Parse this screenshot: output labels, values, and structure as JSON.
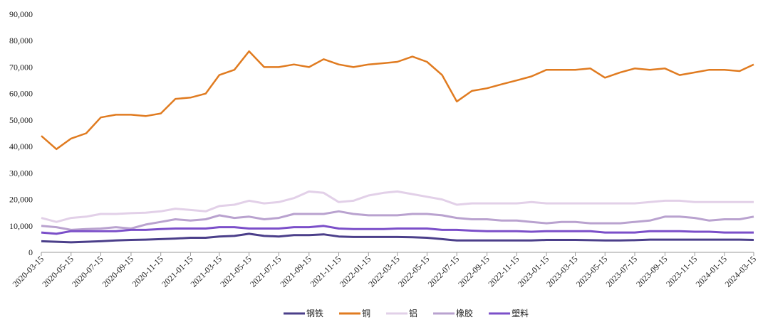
{
  "chart_data": {
    "type": "line",
    "x": [
      "2020-03-15",
      "2020-04-15",
      "2020-05-15",
      "2020-06-15",
      "2020-07-15",
      "2020-08-15",
      "2020-09-15",
      "2020-10-15",
      "2020-11-15",
      "2020-12-15",
      "2021-01-15",
      "2021-02-15",
      "2021-03-15",
      "2021-04-15",
      "2021-05-15",
      "2021-06-15",
      "2021-07-15",
      "2021-08-15",
      "2021-09-15",
      "2021-10-15",
      "2021-11-15",
      "2021-12-15",
      "2022-01-15",
      "2022-02-15",
      "2022-03-15",
      "2022-04-15",
      "2022-05-15",
      "2022-06-15",
      "2022-07-15",
      "2022-08-15",
      "2022-09-15",
      "2022-10-15",
      "2022-11-15",
      "2022-12-15",
      "2023-01-15",
      "2023-02-15",
      "2023-03-15",
      "2023-04-15",
      "2023-05-15",
      "2023-06-15",
      "2023-07-15",
      "2023-08-15",
      "2023-09-15",
      "2023-10-15",
      "2023-11-15",
      "2023-12-15",
      "2024-01-15",
      "2024-02-15",
      "2024-03-15"
    ],
    "series": [
      {
        "name": "钢铁",
        "color": "#4b3f8a",
        "values": [
          4200,
          4000,
          3800,
          4000,
          4200,
          4500,
          4700,
          4800,
          5000,
          5200,
          5500,
          5500,
          6000,
          6200,
          7000,
          6200,
          6000,
          6500,
          6500,
          6800,
          6000,
          5800,
          5800,
          5800,
          5800,
          5700,
          5500,
          5000,
          4500,
          4500,
          4500,
          4500,
          4500,
          4500,
          4700,
          4700,
          4700,
          4600,
          4500,
          4500,
          4600,
          4800,
          4800,
          4800,
          4800,
          4800,
          4800,
          4800,
          4700
        ]
      },
      {
        "name": "铜",
        "color": "#e07b20",
        "values": [
          44000,
          39000,
          43000,
          45000,
          51000,
          52000,
          52000,
          51500,
          52500,
          58000,
          58500,
          60000,
          67000,
          69000,
          76000,
          70000,
          70000,
          71000,
          70000,
          73000,
          71000,
          70000,
          71000,
          71500,
          72000,
          74000,
          72000,
          67000,
          57000,
          61000,
          62000,
          63500,
          65000,
          66500,
          69000,
          69000,
          69000,
          69500,
          66000,
          68000,
          69500,
          69000,
          69500,
          67000,
          68000,
          69000,
          69000,
          68500,
          71000
        ]
      },
      {
        "name": "铝",
        "color": "#e2d0e8",
        "values": [
          13000,
          11500,
          13000,
          13500,
          14500,
          14500,
          14800,
          15000,
          15500,
          16500,
          16000,
          15500,
          17500,
          18000,
          19500,
          18500,
          19000,
          20500,
          23000,
          22500,
          19000,
          19500,
          21500,
          22500,
          23000,
          22000,
          21000,
          20000,
          18000,
          18500,
          18500,
          18500,
          18500,
          19000,
          18500,
          18500,
          18500,
          18500,
          18500,
          18500,
          18500,
          19000,
          19500,
          19500,
          19000,
          19000,
          19000,
          19000,
          19000
        ]
      },
      {
        "name": "橡胶",
        "color": "#b9a2cf",
        "values": [
          10000,
          9500,
          8500,
          8800,
          9000,
          9500,
          9000,
          10500,
          11500,
          12500,
          12000,
          12500,
          14000,
          13000,
          13500,
          12500,
          13000,
          14500,
          14500,
          14500,
          15500,
          14500,
          14000,
          14000,
          14000,
          14500,
          14500,
          14000,
          13000,
          12500,
          12500,
          12000,
          12000,
          11500,
          11000,
          11500,
          11500,
          11000,
          11000,
          11000,
          11500,
          12000,
          13500,
          13500,
          13000,
          12000,
          12500,
          12500,
          13500
        ]
      },
      {
        "name": "塑料",
        "color": "#7b4fc9",
        "values": [
          7500,
          7000,
          8000,
          8000,
          8000,
          8000,
          8500,
          8500,
          8800,
          9000,
          9000,
          9000,
          9500,
          9500,
          9000,
          9000,
          9000,
          9500,
          9500,
          10000,
          9000,
          8800,
          8800,
          8800,
          9000,
          9000,
          9000,
          8500,
          8500,
          8200,
          8000,
          8000,
          8000,
          7800,
          8000,
          8000,
          8000,
          8000,
          7500,
          7500,
          7500,
          8000,
          8000,
          8000,
          7800,
          7800,
          7500,
          7500,
          7500
        ]
      }
    ],
    "xlim": [
      "2020-03-15",
      "2024-03-15"
    ],
    "xticks": [
      "2020-03-15",
      "2020-05-15",
      "2020-07-15",
      "2020-09-15",
      "2020-11-15",
      "2021-01-15",
      "2021-03-15",
      "2021-05-15",
      "2021-07-15",
      "2021-09-15",
      "2021-11-15",
      "2022-01-15",
      "2022-03-15",
      "2022-05-15",
      "2022-07-15",
      "2022-09-15",
      "2022-11-15",
      "2023-01-15",
      "2023-03-15",
      "2023-05-15",
      "2023-07-15",
      "2023-09-15",
      "2023-11-15",
      "2024-01-15",
      "2024-03-15"
    ],
    "ylim": [
      0,
      90000
    ],
    "yticks": [
      0,
      {
        "value": 10000,
        "label": "10,000"
      },
      {
        "value": 20000,
        "label": "20,000"
      },
      {
        "value": 30000,
        "label": "30,000"
      },
      {
        "value": 40000,
        "label": "40,000"
      },
      {
        "value": 50000,
        "label": "50,000"
      },
      {
        "value": 60000,
        "label": "60,000"
      },
      {
        "value": 70000,
        "label": "70,000"
      },
      {
        "value": 80000,
        "label": "80,000"
      },
      {
        "value": 90000,
        "label": "90,000"
      }
    ],
    "grid": false,
    "legend": "bottom"
  }
}
